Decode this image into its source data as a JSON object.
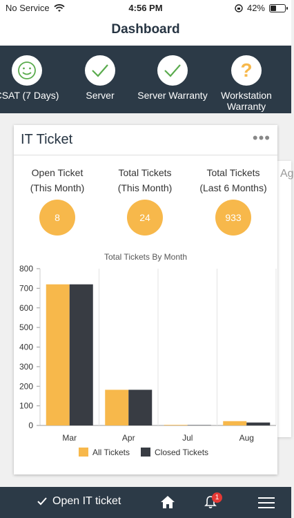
{
  "status_bar": {
    "carrier": "No Service",
    "time": "4:56 PM",
    "battery_text": "42%",
    "battery_level": 0.42
  },
  "nav": {
    "title": "Dashboard"
  },
  "top_stats": [
    {
      "label": "CSAT (7 Days)",
      "icon": "smiley-icon"
    },
    {
      "label": "Server",
      "icon": "check-icon"
    },
    {
      "label": "Server Warranty",
      "icon": "check-icon"
    },
    {
      "label": "Workstation Warranty",
      "icon": "question-icon"
    }
  ],
  "card": {
    "title": "IT Ticket",
    "menu": "•••",
    "metrics": [
      {
        "line1": "Open Ticket",
        "line2": "(This Month)",
        "value": "8"
      },
      {
        "line1": "Total Tickets",
        "line2": "(This Month)",
        "value": "24"
      },
      {
        "line1": "Total Tickets",
        "line2": "(Last 6 Months)",
        "value": "933"
      }
    ]
  },
  "peek_text": "Ag",
  "chart_data": {
    "type": "bar",
    "title": "Total Tickets By Month",
    "categories": [
      "Mar",
      "Apr",
      "Jul",
      "Aug"
    ],
    "series": [
      {
        "name": "All Tickets",
        "color": "#f7b84b",
        "values": [
          720,
          182,
          3,
          22
        ]
      },
      {
        "name": "Closed Tickets",
        "color": "#383c43",
        "values": [
          720,
          182,
          2,
          15
        ]
      }
    ],
    "ylim": [
      0,
      800
    ],
    "yticks": [
      0,
      100,
      200,
      300,
      400,
      500,
      600,
      700,
      800
    ],
    "grid": "vertical",
    "legend": "bottom"
  },
  "bottom_bar": {
    "open_ticket_label": "Open IT ticket",
    "notification_count": "1"
  },
  "colors": {
    "primary": "#2c3a47",
    "accent": "#f7b84b",
    "success": "#4caf50"
  }
}
